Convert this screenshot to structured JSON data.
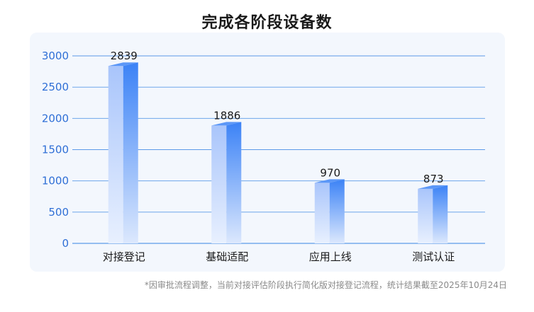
{
  "chart_data": {
    "type": "bar",
    "title": "完成各阶段设备数",
    "categories": [
      "对接登记",
      "基础适配",
      "应用上线",
      "测试认证"
    ],
    "values": [
      2839,
      1886,
      970,
      873
    ],
    "ylim": [
      0,
      3000
    ],
    "yticks": [
      0,
      500,
      1000,
      1500,
      2000,
      2500,
      3000
    ],
    "grid": true,
    "legend": "none",
    "colors": {
      "bar_top": "#5b97f7",
      "bar_right": "#3b82f6",
      "bar_front_top": "#a9c5fb",
      "bar_front_bottom": "#e8f0fe",
      "grid": "#5b9ae8",
      "tick_label": "#2f6fd6"
    }
  },
  "footnote": "*因审批流程调整，当前对接评估阶段执行简化版对接登记流程，统计结果截至2025年10月24日"
}
